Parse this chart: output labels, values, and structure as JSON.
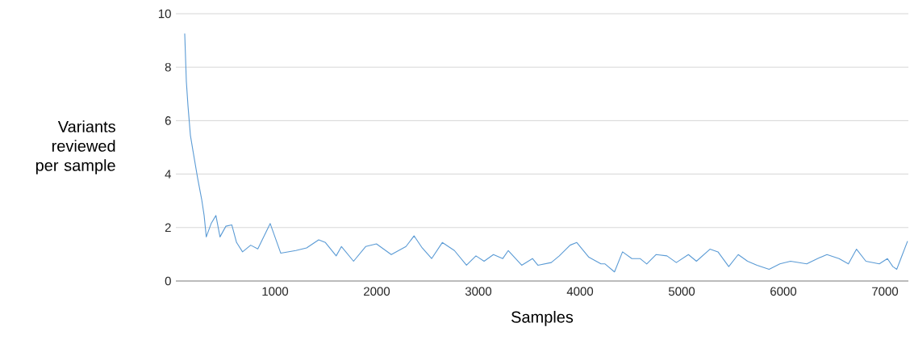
{
  "chart_data": {
    "type": "line",
    "xlabel": "Samples",
    "ylabel": "Variants reviewed per sample",
    "xlim": [
      24,
      7230
    ],
    "ylim": [
      0,
      10
    ],
    "xticks": [
      1000,
      2000,
      3000,
      4000,
      5000,
      6000,
      7000
    ],
    "yticks": [
      0,
      2,
      4,
      6,
      8,
      10
    ],
    "grid": "y",
    "legend": false,
    "marker": "none",
    "line_style": "solid",
    "series": [
      {
        "color": "#5b9bd5",
        "x": [
          111,
          127,
          143,
          167,
          193,
          238,
          278,
          302,
          323,
          371,
          418,
          458,
          516,
          574,
          621,
          680,
          760,
          830,
          952,
          1056,
          1204,
          1310,
          1429,
          1495,
          1601,
          1653,
          1772,
          1891,
          1997,
          2143,
          2288,
          2367,
          2447,
          2540,
          2645,
          2764,
          2883,
          2976,
          3056,
          3148,
          3240,
          3294,
          3426,
          3532,
          3585,
          3717,
          3796,
          3902,
          3968,
          4087,
          4206,
          4246,
          4339,
          4418,
          4510,
          4590,
          4656,
          4749,
          4855,
          4947,
          5066,
          5145,
          5278,
          5357,
          5463,
          5556,
          5648,
          5741,
          5860,
          5966,
          6071,
          6230,
          6336,
          6429,
          6548,
          6640,
          6720,
          6812,
          6944,
          7024,
          7077,
          7116,
          7156,
          7222
        ],
        "values": [
          9.26,
          7.46,
          6.56,
          5.45,
          4.85,
          3.85,
          3.05,
          2.45,
          1.65,
          2.15,
          2.45,
          1.65,
          2.05,
          2.1,
          1.44,
          1.09,
          1.34,
          1.2,
          2.15,
          1.04,
          1.14,
          1.24,
          1.54,
          1.44,
          0.94,
          1.29,
          0.74,
          1.29,
          1.39,
          0.99,
          1.29,
          1.69,
          1.24,
          0.84,
          1.44,
          1.14,
          0.59,
          0.94,
          0.74,
          0.99,
          0.84,
          1.14,
          0.59,
          0.84,
          0.59,
          0.69,
          0.94,
          1.34,
          1.44,
          0.89,
          0.64,
          0.64,
          0.34,
          1.09,
          0.84,
          0.84,
          0.64,
          0.99,
          0.94,
          0.69,
          0.99,
          0.74,
          1.19,
          1.09,
          0.54,
          0.99,
          0.74,
          0.59,
          0.44,
          0.64,
          0.74,
          0.64,
          0.84,
          0.99,
          0.84,
          0.64,
          1.19,
          0.74,
          0.64,
          0.84,
          0.54,
          0.44,
          0.84,
          1.49
        ]
      }
    ]
  }
}
